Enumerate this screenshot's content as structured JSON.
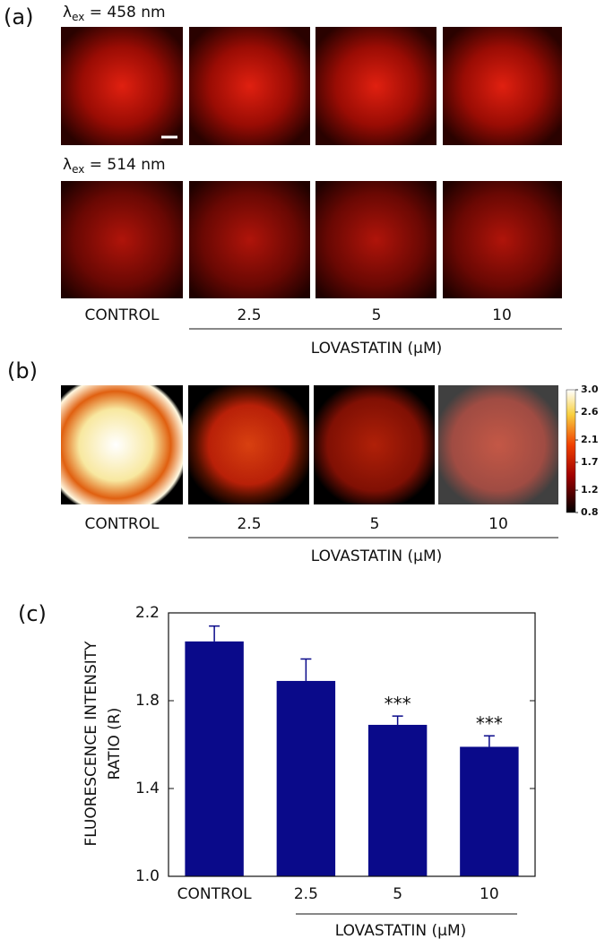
{
  "panel_a": {
    "label": "(a)",
    "rows": [
      {
        "symbol": "λ",
        "sub": "ex",
        "text": " = 458 nm"
      },
      {
        "symbol": "λ",
        "sub": "ex",
        "text": " = 514 nm"
      }
    ],
    "categories": [
      "CONTROL",
      "2.5",
      "5",
      "10"
    ],
    "group_label": "LOVASTATIN (μM)"
  },
  "panel_b": {
    "label": "(b)",
    "categories": [
      "CONTROL",
      "2.5",
      "5",
      "10"
    ],
    "group_label": "LOVASTATIN (μM)",
    "colorbar": {
      "lim": [
        0.8,
        3.0
      ],
      "ticks": [
        0.8,
        1.2,
        1.7,
        2.1,
        2.6,
        {
          "value": 3.0,
          "label": "3.0"
        }
      ]
    }
  },
  "chart_data": {
    "type": "bar",
    "panel_label": "(c)",
    "y_label": [
      "FLUORESCENCE INTENSITY",
      "RATIO (R)"
    ],
    "categories": [
      "CONTROL",
      "2.5",
      "5",
      "10"
    ],
    "group_label": "LOVASTATIN (μM)",
    "values": [
      2.07,
      1.89,
      1.69,
      1.59
    ],
    "errors": [
      0.07,
      0.1,
      0.04,
      0.05
    ],
    "significance": [
      null,
      null,
      "***",
      "***"
    ],
    "color": "#0a0a8a",
    "ylim": [
      1.0,
      2.2
    ],
    "yticks": [
      {
        "value": 1.0,
        "label": "1.0"
      },
      1.4,
      1.8,
      2.2
    ]
  }
}
